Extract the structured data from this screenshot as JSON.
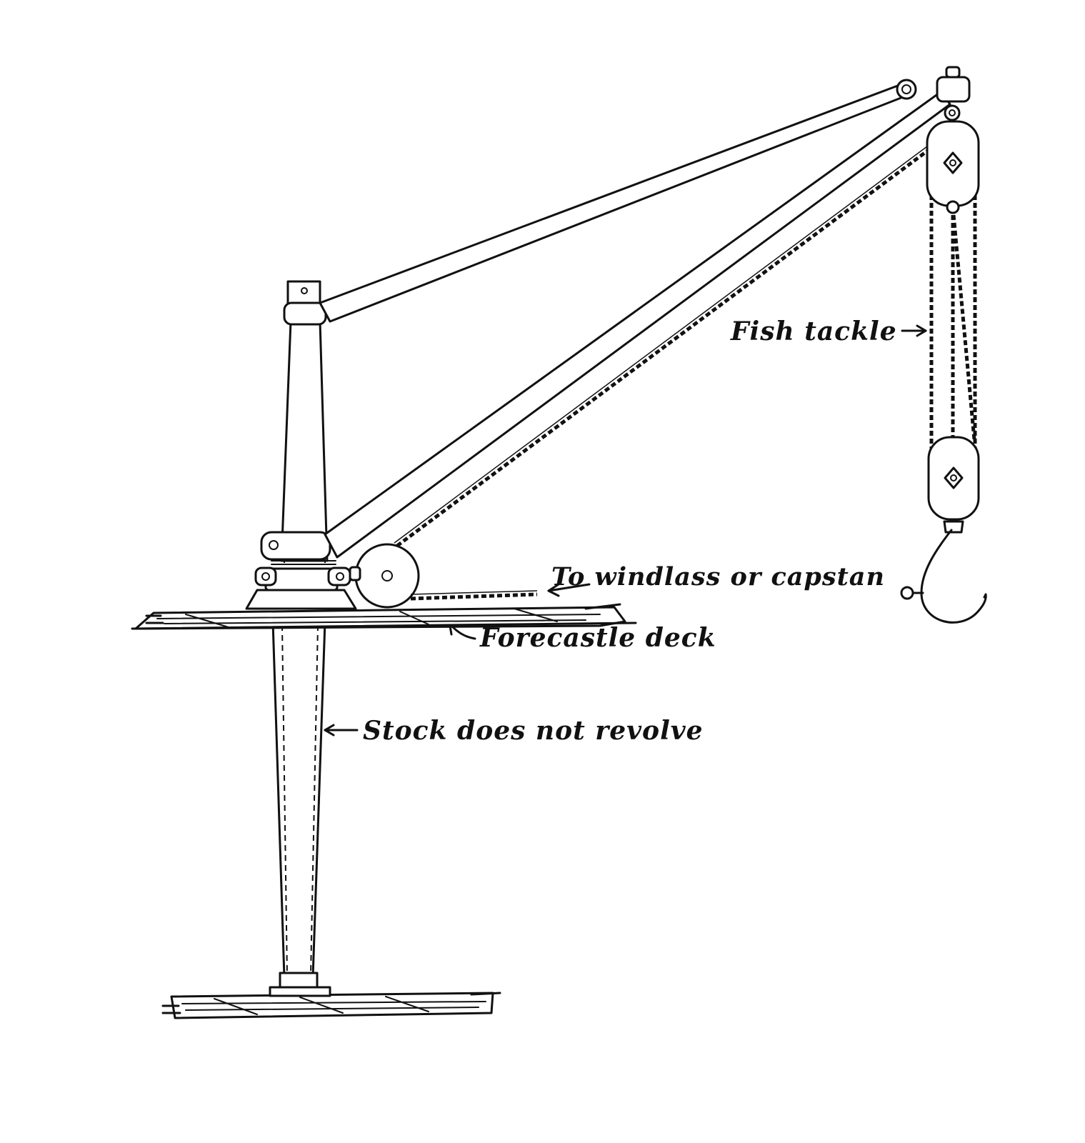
{
  "labels": {
    "fish_tackle": "Fish tackle",
    "windlass": "To windlass or capstan",
    "forecastle": "Forecastle deck",
    "stock": "Stock does not revolve"
  },
  "colors": {
    "ink": "#111111",
    "background": "#ffffff"
  }
}
